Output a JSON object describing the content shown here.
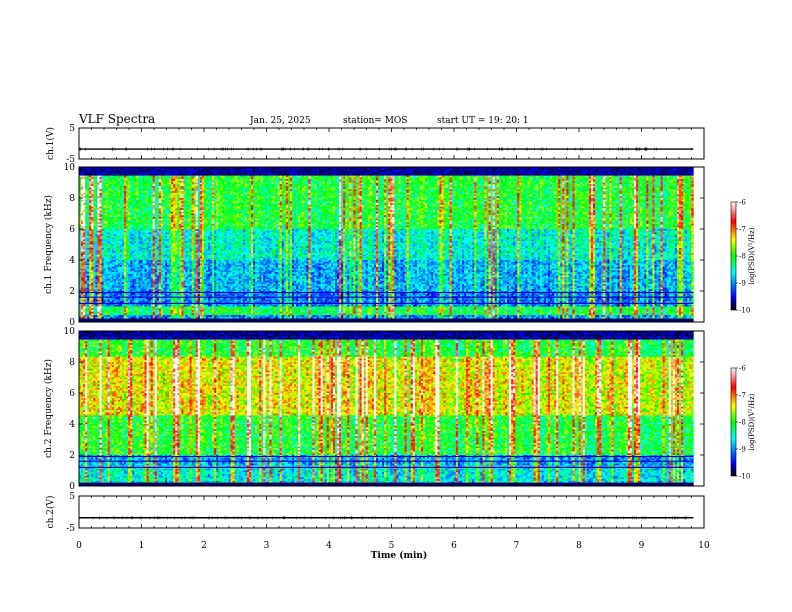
{
  "header": {
    "title": "VLF Spectra",
    "date": "Jan. 25, 2025",
    "station": "station= MOS",
    "start": "start UT = 19: 20: 1"
  },
  "chart_data": [
    {
      "type": "line",
      "name": "channel-1-voltage",
      "ylabel": "ch.1(V)",
      "ylim": [
        -5,
        5
      ],
      "yticks": [
        "5",
        "-5"
      ],
      "xlim": [
        0,
        10
      ],
      "x": [
        0,
        9.83
      ],
      "values": [
        -1.8,
        -1.8
      ]
    },
    {
      "type": "heatmap",
      "name": "channel-1-spectrogram",
      "ylabel": "ch.1 Frequency (kHz)",
      "ylim": [
        0,
        10
      ],
      "yticks": [
        "0",
        "2",
        "4",
        "6",
        "8",
        "10"
      ],
      "xlim": [
        0,
        10
      ],
      "data_extent_min": 9.83,
      "colorbar": {
        "label": "log(PSD)(V²/Hz)",
        "range": [
          -10,
          -6
        ],
        "ticks": [
          "-6",
          "-7",
          "-8",
          "-9",
          "-10"
        ]
      }
    },
    {
      "type": "heatmap",
      "name": "channel-2-spectrogram",
      "ylabel": "ch.2 Frequency (kHz)",
      "ylim": [
        0,
        10
      ],
      "yticks": [
        "0",
        "2",
        "4",
        "6",
        "8",
        "10"
      ],
      "xlim": [
        0,
        10
      ],
      "data_extent_min": 9.83,
      "colorbar": {
        "label": "log(PSD)(V²/Hz)",
        "range": [
          -10,
          -6
        ],
        "ticks": [
          "-6",
          "-7",
          "-8",
          "-9",
          "-10"
        ]
      }
    },
    {
      "type": "line",
      "name": "channel-2-voltage",
      "ylabel": "ch.2(V)",
      "ylim": [
        -5,
        5
      ],
      "yticks": [
        "5",
        "-5"
      ],
      "xlim": [
        0,
        10
      ],
      "x": [
        0,
        9.83
      ],
      "values": [
        -1.8,
        -1.8
      ]
    }
  ],
  "xaxis": {
    "label": "Time (min)",
    "ticks": [
      "0",
      "1",
      "2",
      "3",
      "4",
      "5",
      "6",
      "7",
      "8",
      "9",
      "10"
    ]
  },
  "colors": {
    "voltage_trace": "#000000",
    "colormap": [
      "#000000",
      "#0000ff",
      "#00ffff",
      "#00ff00",
      "#ffff00",
      "#ff0000",
      "#ffffff"
    ]
  }
}
